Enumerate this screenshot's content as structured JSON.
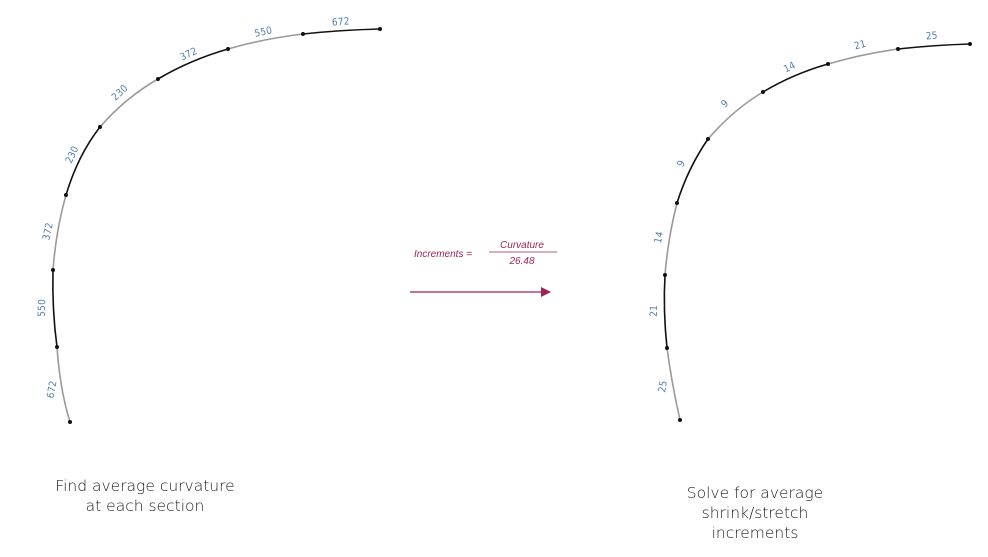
{
  "colors": {
    "label": "#4f7fb3",
    "curve_dark": "#111111",
    "curve_light": "#9a9a9a",
    "accent": "#9c2557",
    "caption": "#222222"
  },
  "left_panel": {
    "segment_labels": [
      "672",
      "550",
      "372",
      "230",
      "230",
      "372",
      "550",
      "672"
    ],
    "caption_lines": [
      "Find average curvature",
      "at each section"
    ]
  },
  "right_panel": {
    "segment_labels": [
      "25",
      "21",
      "14",
      "9",
      "9",
      "14",
      "21",
      "25"
    ],
    "caption_lines": [
      "Solve for average",
      "shrink/stretch",
      "increments"
    ]
  },
  "formula": {
    "lhs": "Increments =",
    "numerator": "Curvature",
    "denominator": "26.48"
  }
}
